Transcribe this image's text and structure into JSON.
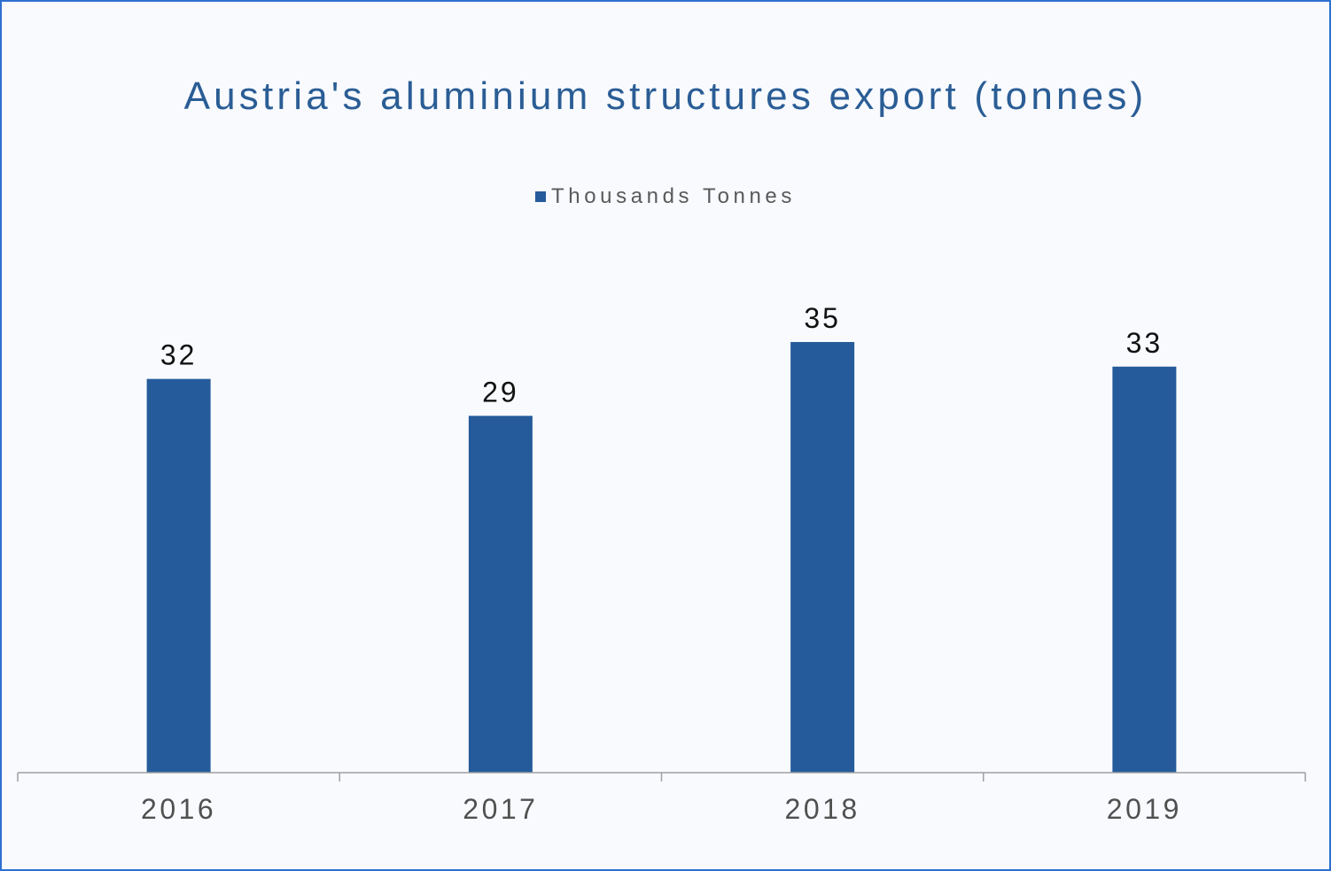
{
  "chart_data": {
    "type": "bar",
    "title": "Austria's aluminium structures export (tonnes)",
    "categories": [
      "2016",
      "2017",
      "2018",
      "2019"
    ],
    "series": [
      {
        "name": "Thousands Tonnes",
        "values": [
          32,
          29,
          35,
          33
        ],
        "color": "#255b9a"
      }
    ],
    "data_labels": [
      "32",
      "29",
      "35",
      "33"
    ],
    "legend_position": "top",
    "grid": false,
    "ylim": [
      0,
      35
    ]
  },
  "colors": {
    "border": "#2f6fd1",
    "background": "#f8fafe",
    "title": "#2a5d95",
    "axis": "#a0a0a0"
  }
}
